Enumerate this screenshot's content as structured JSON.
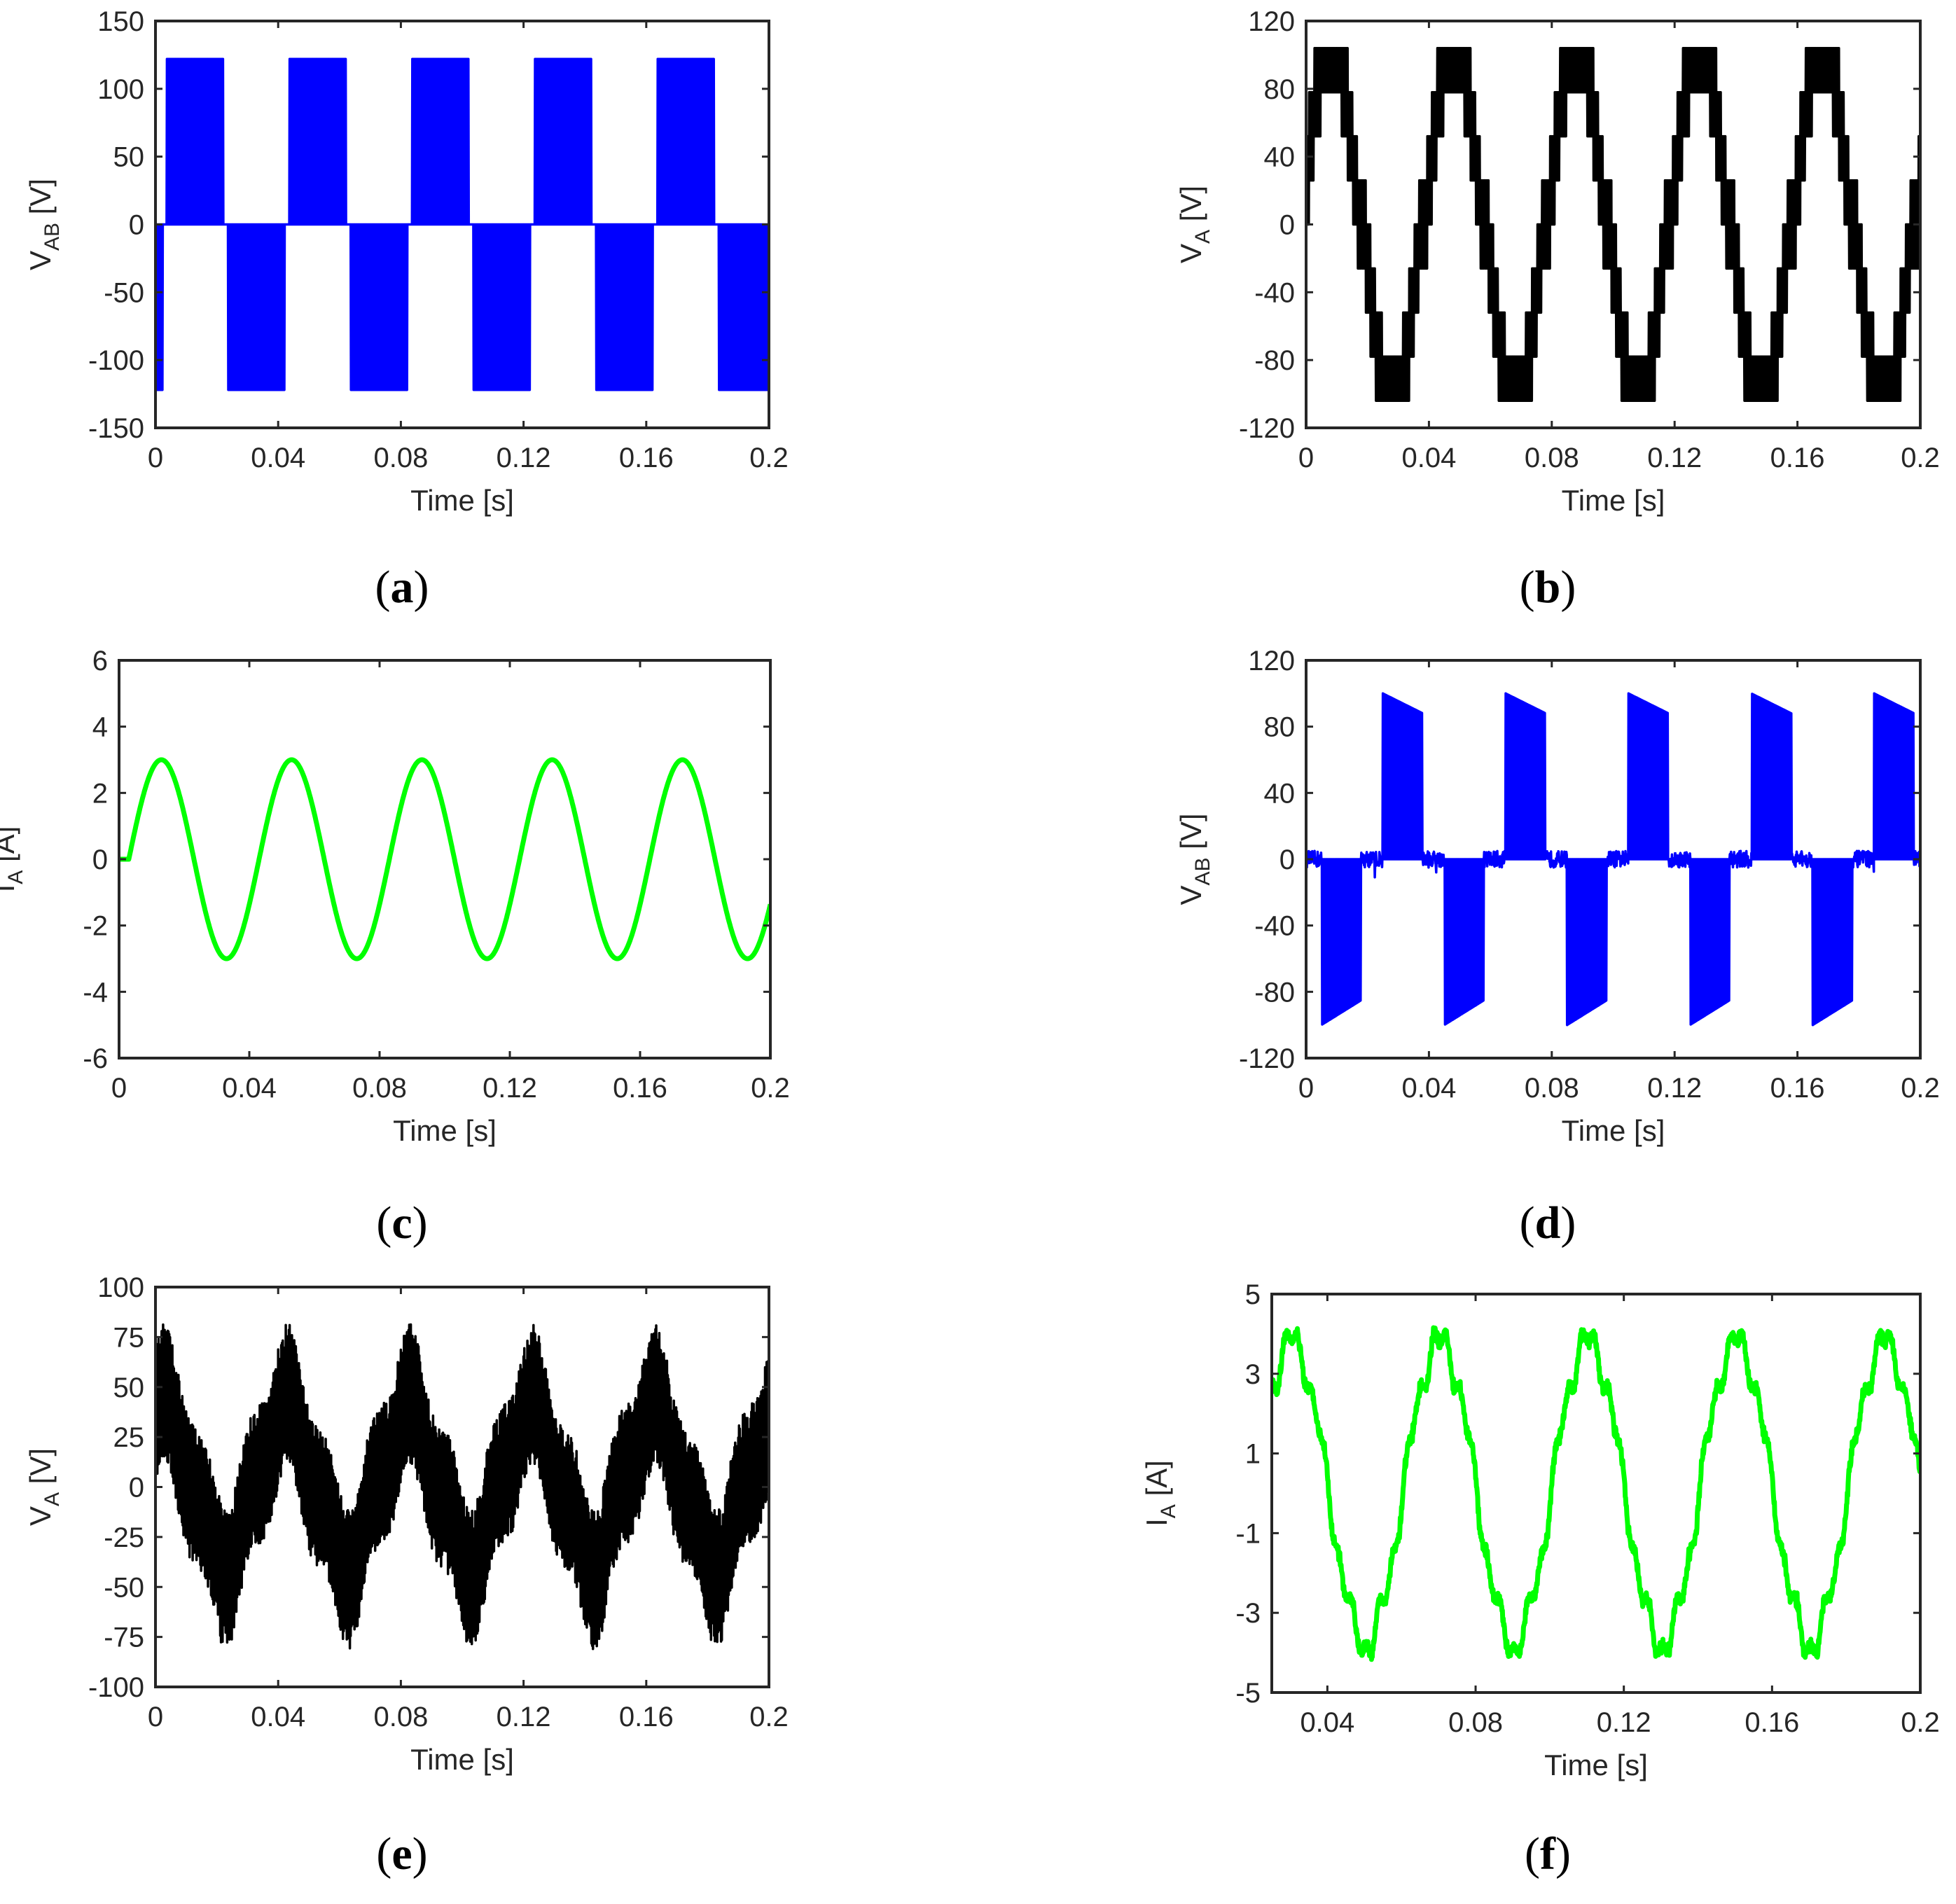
{
  "chart_data": [
    {
      "type": "line",
      "panel": "a",
      "caption": "a",
      "xlabel": "Time [s]",
      "ylabel": {
        "main": "V",
        "sub": "AB",
        "unit": " [V]"
      },
      "xlim": [
        0,
        0.2
      ],
      "ylim": [
        -150,
        150
      ],
      "xticks": [
        0,
        0.04,
        0.08,
        0.12,
        0.16,
        0.2
      ],
      "xtick_labels": [
        "0",
        "0.04",
        "0.08",
        "0.12",
        "0.16",
        "0.2"
      ],
      "yticks": [
        -150,
        -100,
        -50,
        0,
        50,
        100,
        150
      ],
      "ytick_labels": [
        "-150",
        "-100",
        "-50",
        "0",
        "50",
        "100",
        "150"
      ],
      "grid": false,
      "series": [
        {
          "color": "#0000ff",
          "waveform": "pwm_line_voltage",
          "amplitude": 122,
          "frequency_hz": 25,
          "phase_shift_s": 0.0067,
          "time_range": [
            0,
            0.2
          ]
        }
      ]
    },
    {
      "type": "line",
      "panel": "b",
      "caption": "b",
      "xlabel": "Time [s]",
      "ylabel": {
        "main": "V",
        "sub": "A",
        "unit": " [V]"
      },
      "xlim": [
        0,
        0.2
      ],
      "ylim": [
        -120,
        120
      ],
      "xticks": [
        0,
        0.04,
        0.08,
        0.12,
        0.16,
        0.2
      ],
      "xtick_labels": [
        "0",
        "0.04",
        "0.08",
        "0.12",
        "0.16",
        "0.2"
      ],
      "yticks": [
        -120,
        -80,
        -40,
        0,
        40,
        80,
        120
      ],
      "ytick_labels": [
        "-120",
        "-80",
        "-40",
        "0",
        "40",
        "80",
        "120"
      ],
      "grid": false,
      "series": [
        {
          "color": "#000000",
          "waveform": "pwm_phase_voltage",
          "amplitude": 104,
          "frequency_hz": 25,
          "time_range": [
            0,
            0.2
          ]
        }
      ]
    },
    {
      "type": "line",
      "panel": "c",
      "caption": "c",
      "xlabel": "Time [s]",
      "ylabel": {
        "main": "I",
        "sub": "A",
        "unit": " [A]"
      },
      "xlim": [
        0,
        0.2
      ],
      "ylim": [
        -6,
        6
      ],
      "xticks": [
        0,
        0.04,
        0.08,
        0.12,
        0.16,
        0.2
      ],
      "xtick_labels": [
        "0",
        "0.04",
        "0.08",
        "0.12",
        "0.16",
        "0.2"
      ],
      "yticks": [
        -6,
        -4,
        -2,
        0,
        2,
        4,
        6
      ],
      "ytick_labels": [
        "-6",
        "-4",
        "-2",
        "0",
        "2",
        "4",
        "6"
      ],
      "grid": false,
      "series": [
        {
          "color": "#00ff00",
          "waveform": "sine",
          "amplitude": 3.0,
          "frequency_hz": 25,
          "start_s": 0.003,
          "time_range": [
            0,
            0.2
          ]
        }
      ]
    },
    {
      "type": "line",
      "panel": "d",
      "caption": "d",
      "xlabel": "Time [s]",
      "ylabel": {
        "main": "V",
        "sub": "AB",
        "unit": " [V]"
      },
      "xlim": [
        0,
        0.2
      ],
      "ylim": [
        -120,
        120
      ],
      "xticks": [
        0,
        0.04,
        0.08,
        0.12,
        0.16,
        0.2
      ],
      "xtick_labels": [
        "0",
        "0.04",
        "0.08",
        "0.12",
        "0.16",
        "0.2"
      ],
      "yticks": [
        -120,
        -80,
        -40,
        0,
        40,
        80,
        120
      ],
      "ytick_labels": [
        "-120",
        "-80",
        "-40",
        "0",
        "40",
        "80",
        "120"
      ],
      "grid": false,
      "series": [
        {
          "color": "#0000ff",
          "waveform": "pwm_pulse_bursts",
          "amplitude": 100,
          "frequency_hz": 25,
          "positive_burst_s": [
            0.025,
            0.038
          ],
          "negative_burst_s": [
            0.005,
            0.018
          ],
          "time_range": [
            0,
            0.2
          ]
        }
      ]
    },
    {
      "type": "line",
      "panel": "e",
      "caption": "e",
      "xlabel": "Time [s]",
      "ylabel": {
        "main": "V",
        "sub": "A",
        "unit": " [V]"
      },
      "xlim": [
        0,
        0.2
      ],
      "ylim": [
        -100,
        100
      ],
      "xticks": [
        0,
        0.04,
        0.08,
        0.12,
        0.16,
        0.2
      ],
      "xtick_labels": [
        "0",
        "0.04",
        "0.08",
        "0.12",
        "0.16",
        "0.2"
      ],
      "yticks": [
        -100,
        -75,
        -50,
        -25,
        0,
        25,
        50,
        75,
        100
      ],
      "ytick_labels": [
        "-100",
        "-75",
        "-50",
        "-25",
        "0",
        "25",
        "50",
        "75",
        "100"
      ],
      "grid": false,
      "series": [
        {
          "color": "#000000",
          "waveform": "pwm_phase_voltage_distorted",
          "amplitude": 90,
          "frequency_hz": 25,
          "time_range": [
            0,
            0.2
          ]
        }
      ]
    },
    {
      "type": "line",
      "panel": "f",
      "caption": "f",
      "xlabel": "Time [s]",
      "ylabel": {
        "main": "I",
        "sub": "A",
        "unit": " [A]"
      },
      "xlim": [
        0.025,
        0.2
      ],
      "ylim": [
        -5,
        5
      ],
      "xticks": [
        0.04,
        0.08,
        0.12,
        0.16,
        0.2
      ],
      "xtick_labels": [
        "0.04",
        "0.08",
        "0.12",
        "0.16",
        "0.2"
      ],
      "yticks": [
        -5,
        -3,
        -1,
        1,
        3,
        5
      ],
      "ytick_labels": [
        "-5",
        "-3",
        "-1",
        "1",
        "3",
        "5"
      ],
      "grid": false,
      "series": [
        {
          "color": "#00ff00",
          "waveform": "distorted_sine",
          "amplitude": 3.8,
          "frequency_hz": 25,
          "time_range": [
            0.025,
            0.2
          ]
        }
      ]
    }
  ]
}
